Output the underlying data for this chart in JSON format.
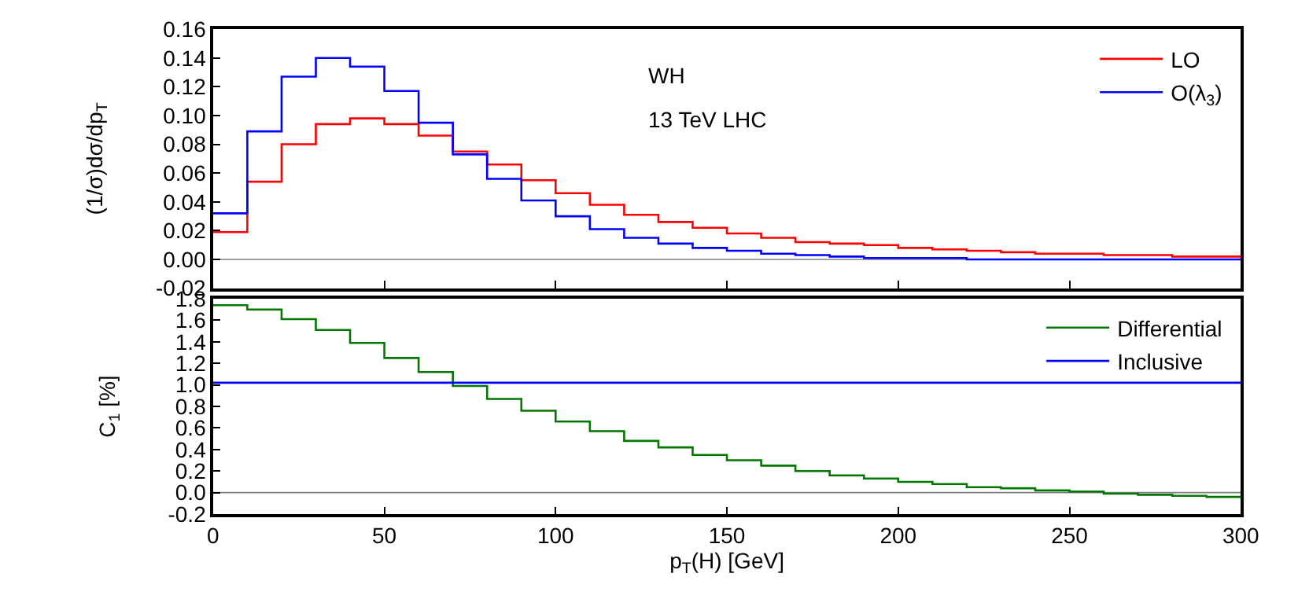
{
  "chart_data": [
    {
      "type": "step",
      "ylabel": "(1/σ)dσ/dp$_{T}$",
      "xlim": [
        0,
        300
      ],
      "ylim": [
        -0.02,
        0.16
      ],
      "yticks": [
        {
          "value": -0.02,
          "label": "-0.02"
        },
        {
          "value": 0,
          "label": "0.00"
        },
        {
          "value": 0.02,
          "label": "0.02"
        },
        {
          "value": 0.04,
          "label": "0.04"
        },
        {
          "value": 0.06,
          "label": "0.06"
        },
        {
          "value": 0.08,
          "label": "0.08"
        },
        {
          "value": 0.1,
          "label": "0.10"
        },
        {
          "value": 0.12,
          "label": "0.12"
        },
        {
          "value": 0.14,
          "label": "0.14"
        },
        {
          "value": 0.16,
          "label": "0.16"
        }
      ],
      "x": [
        0,
        10,
        20,
        30,
        40,
        50,
        60,
        70,
        80,
        90,
        100,
        110,
        120,
        130,
        140,
        150,
        160,
        170,
        180,
        190,
        200,
        210,
        220,
        230,
        240,
        250,
        260,
        270,
        280,
        290,
        300
      ],
      "series": [
        {
          "name": "LO",
          "color": "#ff0000",
          "values": [
            0.019,
            0.054,
            0.08,
            0.094,
            0.098,
            0.094,
            0.086,
            0.075,
            0.066,
            0.055,
            0.046,
            0.038,
            0.031,
            0.026,
            0.022,
            0.018,
            0.015,
            0.012,
            0.011,
            0.01,
            0.008,
            0.007,
            0.006,
            0.005,
            0.004,
            0.004,
            0.003,
            0.003,
            0.002,
            0.002,
            0.002
          ]
        },
        {
          "name": "O(λ$_{3}$)",
          "color": "#0000ff",
          "values": [
            0.032,
            0.089,
            0.127,
            0.14,
            0.134,
            0.117,
            0.095,
            0.073,
            0.056,
            0.041,
            0.03,
            0.021,
            0.015,
            0.011,
            0.008,
            0.006,
            0.004,
            0.003,
            0.002,
            0.001,
            0.001,
            0.001,
            0.0,
            0.0,
            0.0,
            0.0,
            0.0,
            0.0,
            0.0,
            0.0,
            0.0
          ]
        }
      ],
      "ref_lines": [
        {
          "axis": "y",
          "value": 0,
          "color": "#808080"
        }
      ],
      "annotations": [
        "WH",
        "13 TeV LHC"
      ],
      "legend": "top right",
      "grid": false,
      "tick_labels": "y",
      "line_style": "solid",
      "marker": "none"
    },
    {
      "type": "step",
      "ylabel": "C$_{1}$ [%]",
      "xlabel": "p$_{T}$(H) [GeV]",
      "xlim": [
        0,
        300
      ],
      "xticks": [
        0,
        50,
        100,
        150,
        200,
        250,
        300
      ],
      "ylim": [
        -0.2,
        1.8
      ],
      "yticks": [
        {
          "value": -0.2,
          "label": "-0.2"
        },
        {
          "value": 0,
          "label": "0.0"
        },
        {
          "value": 0.2,
          "label": "0.2"
        },
        {
          "value": 0.4,
          "label": "0.4"
        },
        {
          "value": 0.6,
          "label": "0.6"
        },
        {
          "value": 0.8,
          "label": "0.8"
        },
        {
          "value": 1,
          "label": "1.0"
        },
        {
          "value": 1.2,
          "label": "1.2"
        },
        {
          "value": 1.4,
          "label": "1.4"
        },
        {
          "value": 1.6,
          "label": "1.6"
        },
        {
          "value": 1.8,
          "label": "1.8"
        }
      ],
      "x": [
        0,
        10,
        20,
        30,
        40,
        50,
        60,
        70,
        80,
        90,
        100,
        110,
        120,
        130,
        140,
        150,
        160,
        170,
        180,
        190,
        200,
        210,
        220,
        230,
        240,
        250,
        260,
        270,
        280,
        290,
        300
      ],
      "series": [
        {
          "name": "Differential",
          "color": "#007700",
          "values": [
            1.74,
            1.7,
            1.61,
            1.51,
            1.39,
            1.25,
            1.12,
            0.99,
            0.87,
            0.76,
            0.66,
            0.57,
            0.48,
            0.42,
            0.35,
            0.3,
            0.25,
            0.2,
            0.16,
            0.13,
            0.1,
            0.08,
            0.05,
            0.04,
            0.02,
            0.01,
            -0.01,
            -0.02,
            -0.03,
            -0.04,
            -0.04
          ]
        },
        {
          "name": "Inclusive",
          "color": "#0000ff",
          "type": "line",
          "x": [
            0,
            300
          ],
          "values": [
            1.02,
            1.02
          ]
        }
      ],
      "ref_lines": [
        {
          "axis": "y",
          "value": 0,
          "color": "#808080"
        }
      ],
      "legend": "top right",
      "grid": false,
      "line_style": "solid",
      "marker": "none"
    }
  ]
}
